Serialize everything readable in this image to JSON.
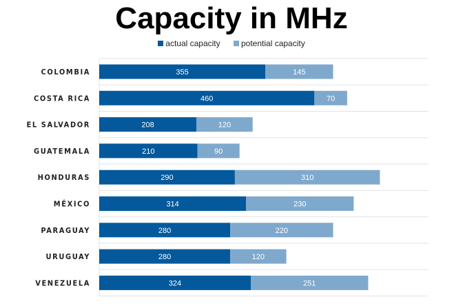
{
  "chart_data": {
    "type": "bar",
    "orientation": "horizontal",
    "stacked": true,
    "title": "Capacity in MHz",
    "categories": [
      "COLOMBIA",
      "COSTA RICA",
      "EL SALVADOR",
      "GUATEMALA",
      "HONDURAS",
      "MÉXICO",
      "PARAGUAY",
      "URUGUAY",
      "VENEZUELA"
    ],
    "series": [
      {
        "name": "actual capacity",
        "color": "#03599c",
        "values": [
          355,
          460,
          208,
          210,
          290,
          314,
          280,
          280,
          324
        ]
      },
      {
        "name": "potential capacity",
        "color": "#7fa9cc",
        "values": [
          145,
          70,
          120,
          90,
          310,
          230,
          220,
          120,
          251
        ]
      }
    ],
    "xlim": [
      0,
      704
    ],
    "grid": true,
    "legend": "top-center",
    "data_labels": true
  }
}
